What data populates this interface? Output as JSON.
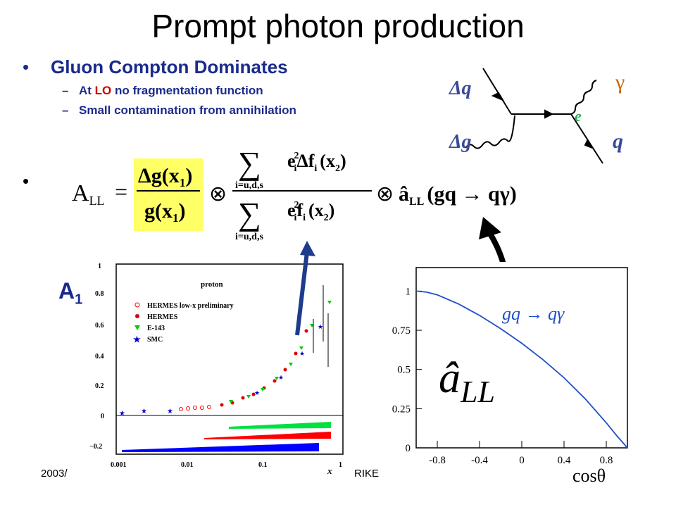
{
  "title": "Prompt photon production",
  "bullet1": "Gluon Compton Dominates",
  "sub1": {
    "prefix": "At ",
    "lo": "LO",
    "rest": " no fragmentation function"
  },
  "sub2": "Small contamination from annihilation",
  "sub_dash": "–",
  "bullet_char": "•",
  "equation": {
    "lhs": "A",
    "lhs_sub": "LL",
    "equals": "=",
    "dg_num": "Δg(x",
    "dg_num_sub": "1",
    "dg_num_close": ")",
    "dg_den": "g(x",
    "dg_den_sub": "1",
    "dg_den_close": ")",
    "otimes": "⊗",
    "sum": "∑",
    "sum_index": "i=u,d,s",
    "num_term": "e",
    "num_term_sub": "i",
    "num_term_sup": "2",
    "num_delta": "Δf",
    "num_delta_sub": "i",
    "num_arg": "(x",
    "num_arg_sub": "2",
    "num_arg_close": ")",
    "den_f": "f",
    "den_f_sub": "i",
    "den_arg": "(x",
    "den_arg_sub": "2",
    "den_arg_close": ")",
    "hat_a": "â",
    "hat_a_sub": "LL",
    "process": "(gq → qγ)"
  },
  "feynman": {
    "dq": "Δq",
    "dg": "Δg",
    "gamma": "γ",
    "q": "q",
    "e": "e"
  },
  "a1_label": "A",
  "a1_sub": "1",
  "footer_left": "2003/",
  "footer_right": "RIKE",
  "a1_plot": {
    "title": "proton",
    "yticks": [
      "1",
      "0.8",
      "0.6",
      "0.4",
      "0.2",
      "0",
      "−0.2"
    ],
    "xticks": [
      "0.001",
      "0.01",
      "0.1",
      "1"
    ],
    "xlabel": "x",
    "legend": [
      "HERMES low-x preliminary",
      "HERMES",
      "E-143",
      "SMC"
    ],
    "colors": {
      "hermes_lowx": "#ff0000",
      "hermes": "#dd0000",
      "e143": "#00cc00",
      "smc": "#0000cc",
      "band_green": "#00e040",
      "band_red": "#ff0000",
      "band_blue": "#0000ff"
    }
  },
  "chart_data": {
    "type": "line",
    "title": "",
    "xlabel": "cosθ",
    "ylabel": "",
    "xlim": [
      -1,
      1
    ],
    "ylim": [
      0,
      1.15
    ],
    "xticks": [
      "-0.8",
      "-0.4",
      "0",
      "0.4",
      "0.8"
    ],
    "yticks": [
      "0",
      "0.25",
      "0.5",
      "0.75",
      "1"
    ],
    "curve_label": "gq → qγ",
    "y_label_symbol": "â",
    "y_label_sub": "LL",
    "series": [
      {
        "name": "gq → qγ",
        "x": [
          -1,
          -0.9,
          -0.8,
          -0.6,
          -0.4,
          -0.2,
          0,
          0.2,
          0.4,
          0.6,
          0.8,
          0.9,
          1
        ],
        "values": [
          1.0,
          0.993,
          0.976,
          0.918,
          0.845,
          0.76,
          0.667,
          0.563,
          0.447,
          0.313,
          0.16,
          0.077,
          0.0
        ]
      }
    ],
    "dashed_baseline": 0
  }
}
